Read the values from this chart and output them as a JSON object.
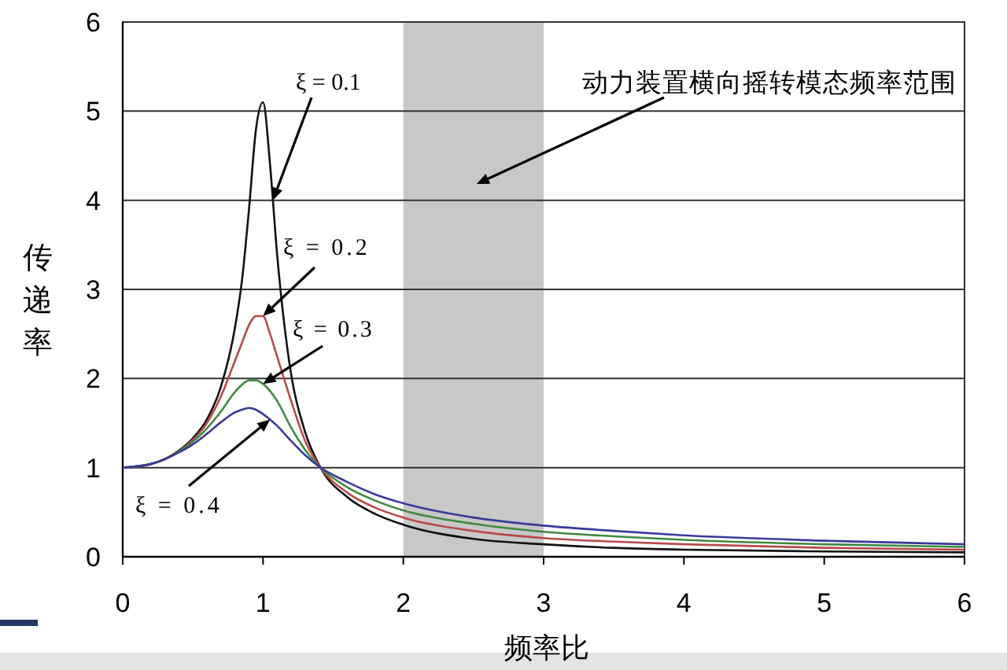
{
  "chart_data": {
    "type": "line",
    "xlabel": "频率比",
    "ylabel": "传递率",
    "x": [
      0,
      0.2,
      0.4,
      0.5,
      0.6,
      0.7,
      0.8,
      0.85,
      0.9,
      0.95,
      1,
      1.05,
      1.1,
      1.2,
      1.3,
      1.41,
      1.6,
      1.8,
      2,
      2.5,
      3,
      3.5,
      4,
      5,
      6
    ],
    "series": [
      {
        "name": "ξ = 0.1",
        "color": "#111111",
        "values": [
          1,
          1.04,
          1.19,
          1.33,
          1.54,
          1.91,
          2.57,
          3.1,
          3.9,
          4.8,
          5.1,
          4.4,
          3.4,
          2.05,
          1.4,
          1.0,
          0.67,
          0.48,
          0.36,
          0.2,
          0.14,
          0.1,
          0.08,
          0.06,
          0.05
        ]
      },
      {
        "name": "ξ = 0.2",
        "color": "#b84a4a",
        "values": [
          1,
          1.04,
          1.18,
          1.31,
          1.5,
          1.8,
          2.2,
          2.4,
          2.6,
          2.7,
          2.7,
          2.5,
          2.25,
          1.75,
          1.3,
          1.0,
          0.72,
          0.55,
          0.44,
          0.29,
          0.21,
          0.17,
          0.14,
          0.1,
          0.08
        ]
      },
      {
        "name": "ξ = 0.3",
        "color": "#3f8a3f",
        "values": [
          1,
          1.04,
          1.18,
          1.29,
          1.44,
          1.63,
          1.85,
          1.93,
          1.98,
          1.98,
          1.94,
          1.86,
          1.75,
          1.45,
          1.2,
          1.0,
          0.78,
          0.63,
          0.52,
          0.37,
          0.28,
          0.23,
          0.19,
          0.14,
          0.11
        ]
      },
      {
        "name": "ξ = 0.4",
        "color": "#3a3a9a",
        "values": [
          1,
          1.04,
          1.17,
          1.26,
          1.38,
          1.51,
          1.62,
          1.65,
          1.67,
          1.65,
          1.6,
          1.54,
          1.47,
          1.3,
          1.14,
          1.0,
          0.84,
          0.7,
          0.6,
          0.44,
          0.35,
          0.29,
          0.24,
          0.18,
          0.14
        ]
      }
    ],
    "xlim": [
      0,
      6
    ],
    "ylim": [
      0,
      6
    ],
    "xticks": [
      0,
      1,
      2,
      3,
      4,
      5,
      6
    ],
    "yticks": [
      0,
      1,
      2,
      3,
      4,
      5,
      6
    ],
    "grid": "y",
    "bands": [
      {
        "axis": "x",
        "from": 2,
        "to": 3,
        "label": "动力装置横向摇转模态频率范围",
        "color": "#c8c8c8"
      }
    ]
  }
}
